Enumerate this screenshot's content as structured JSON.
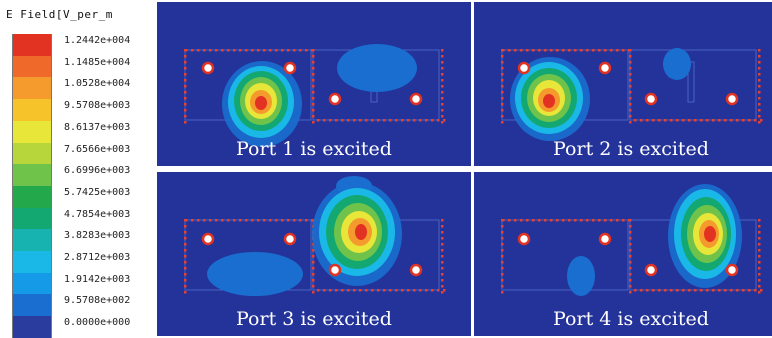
{
  "legend": {
    "title": "E Field[V_per_m",
    "ticks": [
      "1.2442e+004",
      "1.1485e+004",
      "1.0528e+004",
      "9.5708e+003",
      "8.6137e+003",
      "7.6566e+003",
      "6.6996e+003",
      "5.7425e+003",
      "4.7854e+003",
      "3.8283e+003",
      "2.8712e+003",
      "1.9142e+003",
      "9.5708e+002",
      "0.0000e+000"
    ],
    "colors": [
      "#e23222",
      "#ef6a2a",
      "#f59a2c",
      "#f6c42a",
      "#e9e63a",
      "#b6d63c",
      "#6fc24a",
      "#23a84c",
      "#13a872",
      "#16b3b0",
      "#1ab8e6",
      "#149ae6",
      "#1a6ecf",
      "#2a3c9e"
    ]
  },
  "panels": [
    {
      "caption": "Port 1 is excited",
      "hot_spot": "left-inner"
    },
    {
      "caption": "Port 2 is excited",
      "hot_spot": "left-outer"
    },
    {
      "caption": "Port 3 is excited",
      "hot_spot": "right-inner"
    },
    {
      "caption": "Port 4 is excited",
      "hot_spot": "right-outer"
    }
  ]
}
